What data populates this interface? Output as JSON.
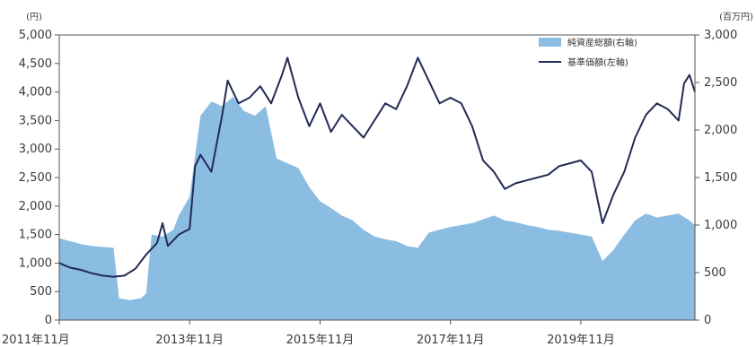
{
  "chart_data": {
    "type": "area+line",
    "left_unit": "(円)",
    "right_unit": "(百万円)",
    "left_ticks": [
      "5,000",
      "4,500",
      "4,000",
      "3,500",
      "3,000",
      "2,500",
      "2,000",
      "1,500",
      "1,000",
      "500",
      "0"
    ],
    "right_ticks": [
      "3,000",
      "2,500",
      "2,000",
      "1,500",
      "1,000",
      "500",
      "0"
    ],
    "x_ticks": [
      "2011年11月",
      "2013年11月",
      "2015年11月",
      "2017年11月",
      "2019年11月"
    ],
    "ylim_left": [
      0,
      5000
    ],
    "ylim_right": [
      0,
      3000
    ],
    "legend": [
      {
        "label": "純資産総額(右軸)",
        "color": "#8bbde3",
        "kind": "area"
      },
      {
        "label": "基準価額(左軸)",
        "color": "#222a55",
        "kind": "line"
      }
    ],
    "series": [
      {
        "name": "純資産総額(右軸)",
        "axis": "right",
        "points": [
          [
            "2011-11",
            860
          ],
          [
            "2012-01",
            830
          ],
          [
            "2012-03",
            800
          ],
          [
            "2012-05",
            780
          ],
          [
            "2012-07",
            770
          ],
          [
            "2012-09",
            760
          ],
          [
            "2012-10",
            230
          ],
          [
            "2012-12",
            210
          ],
          [
            "2013-02",
            230
          ],
          [
            "2013-03",
            280
          ],
          [
            "2013-04",
            900
          ],
          [
            "2013-06",
            880
          ],
          [
            "2013-08",
            950
          ],
          [
            "2013-09",
            1100
          ],
          [
            "2013-11",
            1300
          ],
          [
            "2014-01",
            2150
          ],
          [
            "2014-03",
            2300
          ],
          [
            "2014-05",
            2250
          ],
          [
            "2014-07",
            2350
          ],
          [
            "2014-09",
            2200
          ],
          [
            "2014-11",
            2150
          ],
          [
            "2015-01",
            2250
          ],
          [
            "2015-03",
            1700
          ],
          [
            "2015-05",
            1650
          ],
          [
            "2015-07",
            1600
          ],
          [
            "2015-09",
            1400
          ],
          [
            "2015-11",
            1250
          ],
          [
            "2016-01",
            1180
          ],
          [
            "2016-03",
            1100
          ],
          [
            "2016-05",
            1050
          ],
          [
            "2016-07",
            950
          ],
          [
            "2016-09",
            880
          ],
          [
            "2016-11",
            850
          ],
          [
            "2017-01",
            830
          ],
          [
            "2017-03",
            780
          ],
          [
            "2017-05",
            760
          ],
          [
            "2017-07",
            920
          ],
          [
            "2017-09",
            950
          ],
          [
            "2017-11",
            980
          ],
          [
            "2018-01",
            1000
          ],
          [
            "2018-03",
            1020
          ],
          [
            "2018-05",
            1060
          ],
          [
            "2018-07",
            1100
          ],
          [
            "2018-09",
            1050
          ],
          [
            "2018-11",
            1030
          ],
          [
            "2019-01",
            1000
          ],
          [
            "2019-03",
            980
          ],
          [
            "2019-05",
            950
          ],
          [
            "2019-07",
            940
          ],
          [
            "2019-09",
            920
          ],
          [
            "2019-11",
            900
          ],
          [
            "2020-01",
            880
          ],
          [
            "2020-03",
            620
          ],
          [
            "2020-05",
            740
          ],
          [
            "2020-07",
            900
          ],
          [
            "2020-09",
            1050
          ],
          [
            "2020-11",
            1120
          ],
          [
            "2021-01",
            1080
          ],
          [
            "2021-03",
            1100
          ],
          [
            "2021-05",
            1120
          ],
          [
            "2021-07",
            1050
          ],
          [
            "2021-08",
            1000
          ]
        ]
      },
      {
        "name": "基準価額(左軸)",
        "axis": "left",
        "points": [
          [
            "2011-11",
            1000
          ],
          [
            "2012-01",
            920
          ],
          [
            "2012-03",
            880
          ],
          [
            "2012-05",
            820
          ],
          [
            "2012-07",
            780
          ],
          [
            "2012-09",
            760
          ],
          [
            "2012-11",
            780
          ],
          [
            "2013-01",
            900
          ],
          [
            "2013-03",
            1150
          ],
          [
            "2013-05",
            1350
          ],
          [
            "2013-06",
            1700
          ],
          [
            "2013-07",
            1300
          ],
          [
            "2013-09",
            1500
          ],
          [
            "2013-11",
            1600
          ],
          [
            "2013-12",
            2700
          ],
          [
            "2014-01",
            2900
          ],
          [
            "2014-03",
            2600
          ],
          [
            "2014-05",
            3600
          ],
          [
            "2014-06",
            4200
          ],
          [
            "2014-08",
            3800
          ],
          [
            "2014-10",
            3900
          ],
          [
            "2014-12",
            4100
          ],
          [
            "2015-02",
            3800
          ],
          [
            "2015-04",
            4300
          ],
          [
            "2015-05",
            4600
          ],
          [
            "2015-07",
            3900
          ],
          [
            "2015-09",
            3400
          ],
          [
            "2015-11",
            3800
          ],
          [
            "2016-01",
            3300
          ],
          [
            "2016-03",
            3600
          ],
          [
            "2016-05",
            3400
          ],
          [
            "2016-07",
            3200
          ],
          [
            "2016-09",
            3500
          ],
          [
            "2016-11",
            3800
          ],
          [
            "2017-01",
            3700
          ],
          [
            "2017-03",
            4100
          ],
          [
            "2017-05",
            4600
          ],
          [
            "2017-07",
            4200
          ],
          [
            "2017-09",
            3800
          ],
          [
            "2017-11",
            3900
          ],
          [
            "2018-01",
            3800
          ],
          [
            "2018-03",
            3400
          ],
          [
            "2018-05",
            2800
          ],
          [
            "2018-07",
            2600
          ],
          [
            "2018-09",
            2300
          ],
          [
            "2018-11",
            2400
          ],
          [
            "2019-01",
            2450
          ],
          [
            "2019-03",
            2500
          ],
          [
            "2019-05",
            2550
          ],
          [
            "2019-07",
            2700
          ],
          [
            "2019-09",
            2750
          ],
          [
            "2019-11",
            2800
          ],
          [
            "2020-01",
            2600
          ],
          [
            "2020-03",
            1700
          ],
          [
            "2020-05",
            2200
          ],
          [
            "2020-07",
            2600
          ],
          [
            "2020-09",
            3200
          ],
          [
            "2020-11",
            3600
          ],
          [
            "2021-01",
            3800
          ],
          [
            "2021-03",
            3700
          ],
          [
            "2021-05",
            3500
          ],
          [
            "2021-06",
            4150
          ],
          [
            "2021-07",
            4300
          ],
          [
            "2021-08",
            4000
          ]
        ]
      }
    ]
  }
}
